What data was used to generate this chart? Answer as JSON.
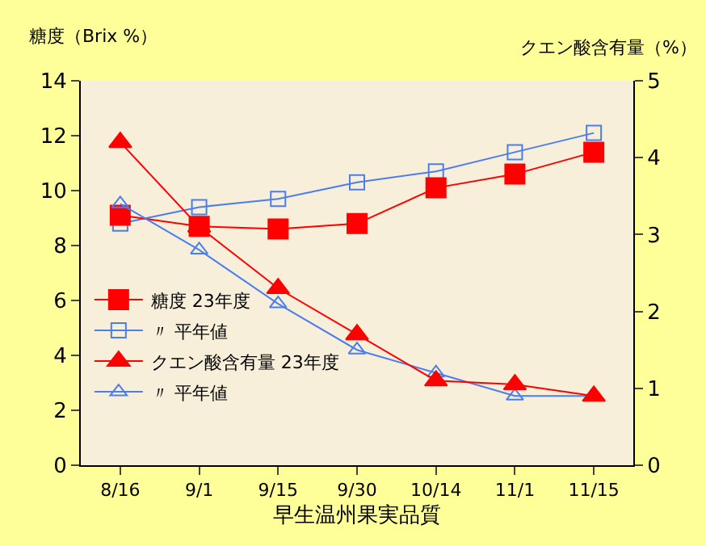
{
  "chart_data": {
    "type": "line",
    "xlabel": "早生温州果実品質",
    "ylabel": "糖度（Brix %）",
    "y2label": "クエン酸含有量（%）",
    "categories": [
      "8/16",
      "9/1",
      "9/15",
      "9/30",
      "10/14",
      "11/1",
      "11/15"
    ],
    "series": [
      {
        "name": "糖度 23年度",
        "color": "#ff0000",
        "marker": "square",
        "values": [
          9.1,
          8.7,
          8.6,
          8.8,
          10.1,
          10.6,
          11.4
        ]
      },
      {
        "name": "〃 平年値",
        "color": "#4a7ef0",
        "marker": "square-open",
        "values": [
          8.8,
          9.4,
          9.7,
          10.3,
          10.7,
          11.4,
          12.1
        ]
      },
      {
        "name": "クエン酸含有量 23年度",
        "color": "#ff0000",
        "marker": "triangle",
        "axis": "y2",
        "values": [
          4.2,
          3.1,
          2.3,
          1.7,
          1.1,
          1.05,
          0.9
        ]
      },
      {
        "name": "〃 平年値",
        "color": "#4a7ef0",
        "marker": "triangle-open",
        "axis": "y2",
        "values": [
          3.4,
          2.8,
          2.1,
          1.5,
          1.2,
          0.9,
          0.9
        ]
      }
    ],
    "ylim": [
      0,
      14
    ],
    "yticks": [
      0,
      2,
      4,
      6,
      8,
      10,
      12,
      14
    ],
    "y2lim": [
      0,
      5
    ],
    "y2ticks": [
      0,
      1,
      2,
      3,
      4,
      5
    ],
    "grid": false,
    "legend": "bottom left"
  }
}
